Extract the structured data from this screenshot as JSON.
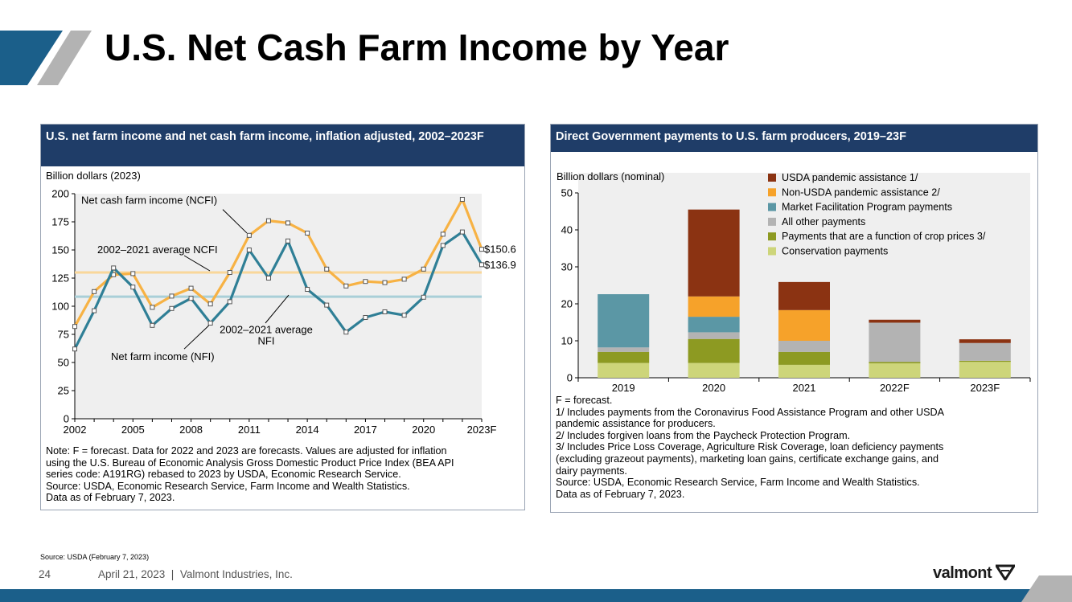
{
  "slide": {
    "title": "U.S. Net Cash Farm Income by Year",
    "source_note": "Source: USDA (February 7, 2023)",
    "page_number": "24",
    "footer": "April 21, 2023  |  Valmont Industries, Inc.",
    "logo_text": "valmont",
    "colors": {
      "brand_blue": "#1b5f8a",
      "header_navy": "#1f3d68",
      "accent_gray": "#b3b3b3"
    }
  },
  "left_panel": {
    "header": "U.S. net farm income and net cash farm income, inflation adjusted, 2002–2023F",
    "notes": [
      "Note: F = forecast. Data for 2022 and 2023 are forecasts. Values are adjusted for inflation",
      "using the U.S. Bureau of Economic Analysis Gross Domestic Product Price Index (BEA API",
      "series code: A191RG) rebased to 2023 by USDA, Economic Research Service.",
      "Source: USDA, Economic Research Service, Farm Income and Wealth Statistics.",
      "Data as of February 7, 2023."
    ]
  },
  "right_panel": {
    "header": "Direct Government payments to U.S. farm producers, 2019–23F",
    "notes": [
      "F = forecast.",
      "1/ Includes payments from the Coronavirus Food Assistance Program and other USDA",
      "pandemic assistance for producers.",
      "2/ Includes forgiven loans from the Paycheck Protection Program.",
      "3/ Includes Price Loss Coverage, Agriculture Risk Coverage, loan deficiency payments",
      "(excluding grazeout payments), marketing loan gains, certificate exchange gains, and",
      "dairy payments.",
      "Source: USDA, Economic Research Service, Farm Income and Wealth Statistics.",
      "Data as of February 7, 2023."
    ]
  },
  "chart_data": [
    {
      "type": "line",
      "title": "U.S. net farm income and net cash farm income, inflation adjusted, 2002–2023F",
      "ylabel": "Billion dollars (2023)",
      "ylim": [
        0,
        200
      ],
      "yticks": [
        0,
        25,
        50,
        75,
        100,
        125,
        150,
        175,
        200
      ],
      "x": [
        2002,
        2003,
        2004,
        2005,
        2006,
        2007,
        2008,
        2009,
        2010,
        2011,
        2012,
        2013,
        2014,
        2015,
        2016,
        2017,
        2018,
        2019,
        2020,
        2021,
        2022,
        2023
      ],
      "xtick_labels": [
        "2002",
        "2005",
        "2008",
        "2011",
        "2014",
        "2017",
        "2020",
        "2023F"
      ],
      "xtick_values": [
        2002,
        2005,
        2008,
        2011,
        2014,
        2017,
        2020,
        2023
      ],
      "grid": false,
      "background": "#efefef",
      "series": [
        {
          "name": "Net cash farm income (NCFI)",
          "color": "#f7b244",
          "values": [
            82,
            113,
            128,
            129,
            99,
            109,
            116,
            102,
            130,
            163,
            176,
            174,
            165,
            133,
            118,
            122,
            121,
            124,
            133,
            164,
            195,
            150.6
          ]
        },
        {
          "name": "Net farm income (NFI)",
          "color": "#2f7f96",
          "values": [
            62,
            96,
            134,
            117,
            83,
            98,
            107,
            85,
            104,
            150,
            125,
            158,
            115,
            101,
            77,
            90,
            95,
            92,
            108,
            154,
            166,
            136.9
          ]
        }
      ],
      "reference_lines": [
        {
          "name": "2002–2021 average NCFI",
          "value": 130,
          "color": "#f9d79a"
        },
        {
          "name": "2002–2021 average NFI",
          "value": 108.5,
          "color": "#a9cfd8"
        }
      ],
      "annotations": {
        "ncfi_label": "Net cash farm income (NCFI)",
        "avg_ncfi_label": "2002–2021 average NCFI",
        "avg_nfi_label_line1": "2002–2021 average",
        "avg_nfi_label_line2": "NFI",
        "nfi_label": "Net farm income (NFI)",
        "end_ncfi": "$150.6",
        "end_nfi": "$136.9"
      }
    },
    {
      "type": "bar",
      "stacked": true,
      "title": "Direct Government payments to U.S. farm producers, 2019–23F",
      "ylabel": "Billion dollars (nominal)",
      "ylim": [
        0,
        50
      ],
      "yticks": [
        0,
        10,
        20,
        30,
        40,
        50
      ],
      "categories": [
        "2019",
        "2020",
        "2021",
        "2022F",
        "2023F"
      ],
      "grid": false,
      "legend_position": "top-right",
      "background": "#efefef",
      "series": [
        {
          "name": "Conservation payments",
          "color": "#cdd57a",
          "values": [
            4.0,
            4.0,
            3.5,
            3.9,
            4.3
          ]
        },
        {
          "name": "Payments that are a function of crop prices 3/",
          "color": "#8d9a22",
          "values": [
            3.0,
            6.5,
            3.5,
            0.4,
            0.3
          ]
        },
        {
          "name": "All other payments",
          "color": "#b3b3b3",
          "values": [
            1.2,
            1.8,
            3.0,
            10.6,
            4.8
          ]
        },
        {
          "name": "Market Facilitation Program payments",
          "color": "#5b97a5",
          "values": [
            14.4,
            4.2,
            0.0,
            0.0,
            0.0
          ]
        },
        {
          "name": "Non-USDA pandemic assistance 2/",
          "color": "#f6a22a",
          "values": [
            0.0,
            5.5,
            8.3,
            0.0,
            0.0
          ]
        },
        {
          "name": "USDA pandemic assistance 1/",
          "color": "#8b3312",
          "values": [
            0.0,
            23.5,
            7.6,
            0.8,
            1.0
          ]
        }
      ],
      "legend_order": [
        "USDA pandemic assistance 1/",
        "Non-USDA pandemic assistance 2/",
        "Market Facilitation Program payments",
        "All other payments",
        "Payments that are a function of crop prices 3/",
        "Conservation payments"
      ]
    }
  ]
}
